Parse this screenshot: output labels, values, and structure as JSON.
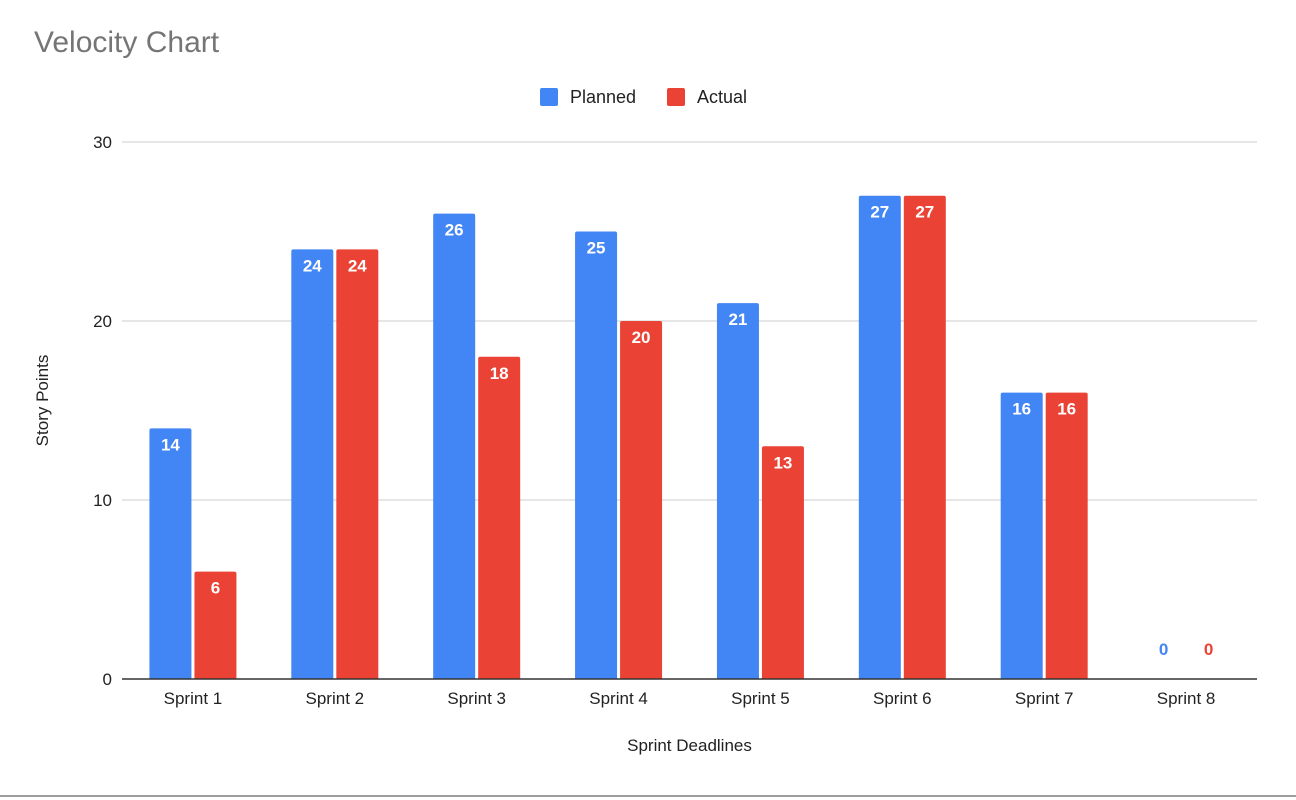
{
  "chart_data": {
    "type": "bar",
    "title": "Velocity Chart",
    "xlabel": "Sprint Deadlines",
    "ylabel": "Story Points",
    "categories": [
      "Sprint 1",
      "Sprint 2",
      "Sprint 3",
      "Sprint 4",
      "Sprint 5",
      "Sprint 6",
      "Sprint 7",
      "Sprint 8"
    ],
    "series": [
      {
        "name": "Planned",
        "color": "#4285F4",
        "values": [
          14,
          24,
          26,
          25,
          21,
          27,
          16,
          0
        ]
      },
      {
        "name": "Actual",
        "color": "#EA4335",
        "values": [
          6,
          24,
          18,
          20,
          13,
          27,
          16,
          0
        ]
      }
    ],
    "ylim": [
      0,
      30
    ],
    "yticks": [
      0,
      10,
      20,
      30
    ],
    "grid": true,
    "legend_position": "top-center",
    "data_labels": true
  }
}
